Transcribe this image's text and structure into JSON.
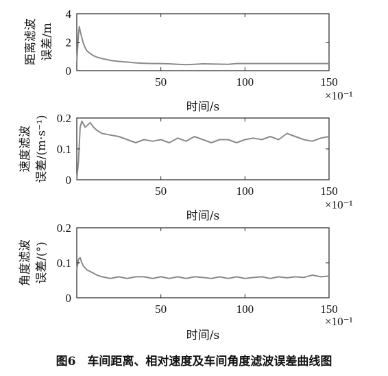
{
  "caption": "图6　车间距离、相对速度及车间角度滤波误差曲线图",
  "chart_data": [
    {
      "type": "line",
      "name": "distance",
      "ylabel_lines": [
        "距离滤波",
        "误差/m"
      ],
      "xlabel": "时间/s",
      "x_multiplier": "×10⁻¹",
      "xlim": [
        0,
        150
      ],
      "ylim": [
        0,
        4
      ],
      "xticks": [
        50,
        100,
        150
      ],
      "yticks": [
        0,
        2,
        4
      ],
      "series": [
        {
          "color": "#8a8a8a",
          "x": [
            0,
            1,
            1.5,
            2,
            3,
            4,
            5,
            6,
            8,
            10,
            12,
            15,
            18,
            20,
            25,
            30,
            35,
            40,
            45,
            50,
            55,
            60,
            65,
            70,
            75,
            80,
            85,
            90,
            95,
            100,
            105,
            110,
            115,
            120,
            125,
            130,
            135,
            140,
            145,
            150
          ],
          "y": [
            0.6,
            2.6,
            3.1,
            2.8,
            2.3,
            1.9,
            1.6,
            1.4,
            1.2,
            1.05,
            0.95,
            0.85,
            0.78,
            0.72,
            0.65,
            0.6,
            0.55,
            0.52,
            0.5,
            0.5,
            0.48,
            0.45,
            0.42,
            0.45,
            0.48,
            0.47,
            0.46,
            0.45,
            0.5,
            0.5,
            0.5,
            0.5,
            0.5,
            0.5,
            0.5,
            0.5,
            0.5,
            0.5,
            0.5,
            0.5
          ]
        }
      ]
    },
    {
      "type": "line",
      "name": "speed",
      "ylabel_lines": [
        "速度滤波",
        "误差/(m·s⁻¹)"
      ],
      "xlabel": "时间/s",
      "x_multiplier": "×10⁻¹",
      "xlim": [
        0,
        150
      ],
      "ylim": [
        0,
        0.2
      ],
      "xticks": [
        50,
        100,
        150
      ],
      "yticks": [
        0,
        0.1,
        0.2
      ],
      "series": [
        {
          "color": "#8a8a8a",
          "x": [
            0,
            1,
            2,
            3,
            4,
            5,
            6,
            8,
            10,
            12,
            15,
            20,
            25,
            30,
            35,
            40,
            45,
            50,
            55,
            60,
            65,
            70,
            75,
            80,
            85,
            90,
            95,
            100,
            105,
            110,
            115,
            120,
            125,
            130,
            135,
            140,
            145,
            150
          ],
          "y": [
            0.0,
            0.06,
            0.17,
            0.19,
            0.18,
            0.17,
            0.175,
            0.185,
            0.17,
            0.16,
            0.15,
            0.145,
            0.14,
            0.13,
            0.12,
            0.13,
            0.125,
            0.13,
            0.12,
            0.135,
            0.125,
            0.14,
            0.13,
            0.12,
            0.13,
            0.13,
            0.12,
            0.13,
            0.135,
            0.13,
            0.14,
            0.13,
            0.15,
            0.14,
            0.13,
            0.125,
            0.135,
            0.14
          ]
        }
      ]
    },
    {
      "type": "line",
      "name": "angle",
      "ylabel_lines": [
        "角度滤波",
        "误差/(°)"
      ],
      "xlabel": "时间/s",
      "x_multiplier": "×10⁻¹",
      "xlim": [
        0,
        150
      ],
      "ylim": [
        0,
        0.2
      ],
      "xticks": [
        50,
        100,
        150
      ],
      "yticks": [
        0,
        0.1,
        0.2
      ],
      "series": [
        {
          "color": "#8a8a8a",
          "x": [
            0,
            1,
            2,
            3,
            4,
            5,
            6,
            8,
            10,
            12,
            15,
            20,
            25,
            30,
            35,
            40,
            45,
            50,
            55,
            60,
            65,
            70,
            75,
            80,
            85,
            90,
            95,
            100,
            105,
            110,
            115,
            120,
            125,
            130,
            135,
            140,
            145,
            150
          ],
          "y": [
            0.08,
            0.11,
            0.115,
            0.1,
            0.09,
            0.085,
            0.08,
            0.075,
            0.07,
            0.065,
            0.06,
            0.055,
            0.06,
            0.055,
            0.06,
            0.06,
            0.055,
            0.06,
            0.055,
            0.06,
            0.055,
            0.06,
            0.058,
            0.055,
            0.06,
            0.055,
            0.06,
            0.055,
            0.058,
            0.06,
            0.055,
            0.06,
            0.057,
            0.06,
            0.058,
            0.065,
            0.06,
            0.062
          ]
        }
      ]
    }
  ]
}
